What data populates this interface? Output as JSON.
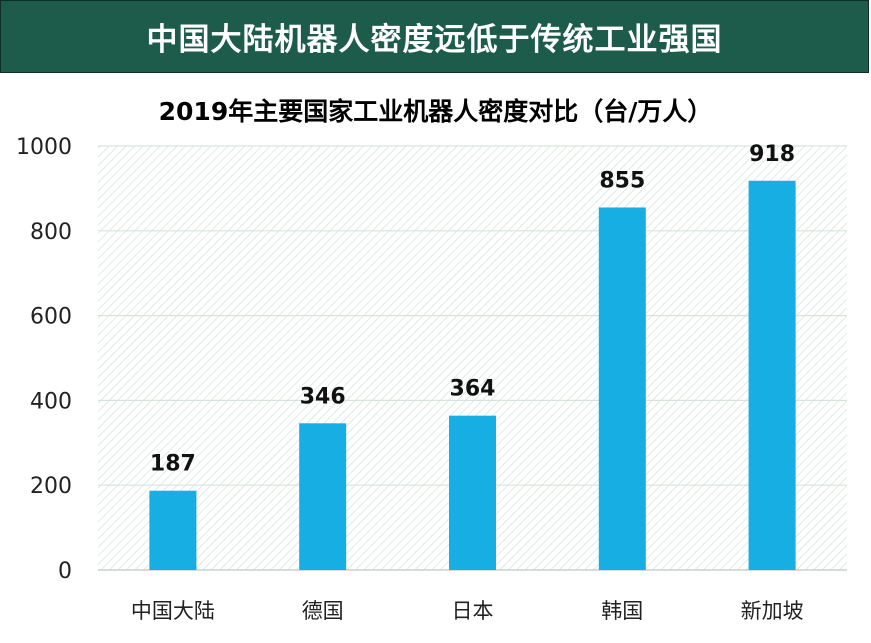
{
  "banner": {
    "title": "中国大陆机器人密度远低于传统工业强国"
  },
  "colors": {
    "banner_bg": "#1d5c4a",
    "bar": "#17aee3",
    "grid": "#d9e3dd",
    "plot_hatch": "#cfe3d6"
  },
  "chart_data": {
    "type": "bar",
    "title": "2019年主要国家工业机器人密度对比（台/万人）",
    "xlabel": "",
    "ylabel": "",
    "categories": [
      "中国大陆",
      "德国",
      "日本",
      "韩国",
      "新加坡"
    ],
    "values": [
      187,
      346,
      364,
      855,
      918
    ],
    "ylim": [
      0,
      1000
    ],
    "yticks": [
      0,
      200,
      400,
      600,
      800,
      1000
    ],
    "grid": true,
    "data_labels": true,
    "legend": false
  }
}
